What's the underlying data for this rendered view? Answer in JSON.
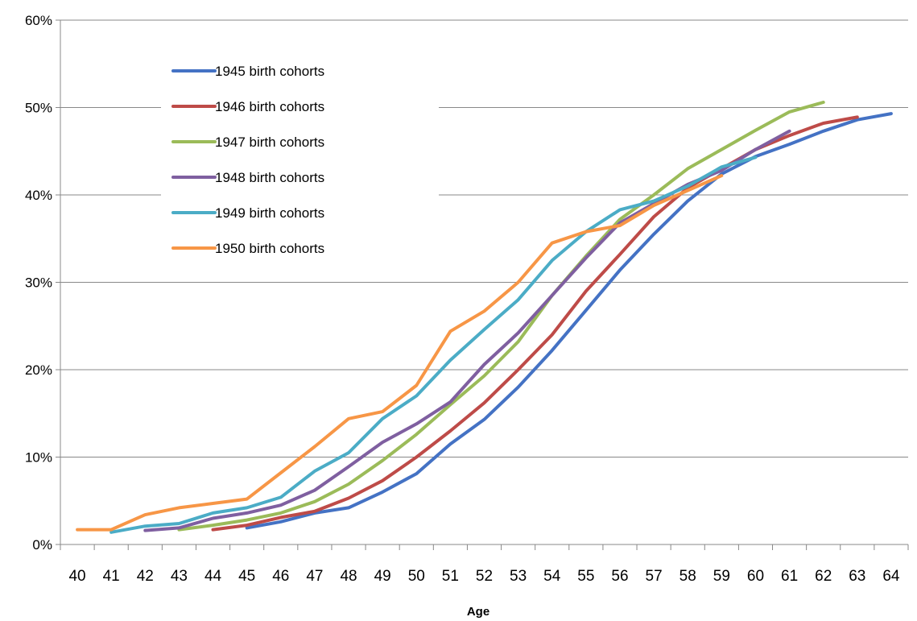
{
  "chart_data": {
    "type": "line",
    "title": "",
    "xlabel": "Age",
    "ylabel": "",
    "x": [
      40,
      41,
      42,
      43,
      44,
      45,
      46,
      47,
      48,
      49,
      50,
      51,
      52,
      53,
      54,
      55,
      56,
      57,
      58,
      59,
      60,
      61,
      62,
      63,
      64
    ],
    "xlim": [
      40,
      64
    ],
    "ylim": [
      0,
      0.6
    ],
    "yticks": [
      0,
      0.1,
      0.2,
      0.3,
      0.4,
      0.5,
      0.6
    ],
    "ytick_labels": [
      "0%",
      "10%",
      "20%",
      "30%",
      "40%",
      "50%",
      "60%"
    ],
    "grid": "horizontal",
    "legend_position": "upper-left inside plot",
    "series": [
      {
        "name": "1945 birth cohorts",
        "color": "#4472C4",
        "x": [
          45,
          46,
          47,
          48,
          49,
          50,
          51,
          52,
          53,
          54,
          55,
          56,
          57,
          58,
          59,
          60,
          61,
          62,
          63,
          64
        ],
        "values": [
          0.019,
          0.026,
          0.036,
          0.042,
          0.06,
          0.081,
          0.115,
          0.143,
          0.18,
          0.222,
          0.268,
          0.314,
          0.355,
          0.393,
          0.424,
          0.444,
          0.458,
          0.473,
          0.486,
          0.493
        ]
      },
      {
        "name": "1946 birth cohorts",
        "color": "#BE4B48",
        "x": [
          44,
          45,
          46,
          47,
          48,
          49,
          50,
          51,
          52,
          53,
          54,
          55,
          56,
          57,
          58,
          59,
          60,
          61,
          62,
          63
        ],
        "values": [
          0.017,
          0.022,
          0.031,
          0.038,
          0.053,
          0.073,
          0.1,
          0.13,
          0.162,
          0.2,
          0.24,
          0.29,
          0.332,
          0.375,
          0.408,
          0.43,
          0.452,
          0.468,
          0.482,
          0.489
        ]
      },
      {
        "name": "1947 birth cohorts",
        "color": "#9BBB59",
        "x": [
          43,
          44,
          45,
          46,
          47,
          48,
          49,
          50,
          51,
          52,
          53,
          54,
          55,
          56,
          57,
          58,
          59,
          60,
          61,
          62
        ],
        "values": [
          0.017,
          0.022,
          0.028,
          0.036,
          0.049,
          0.069,
          0.096,
          0.126,
          0.16,
          0.193,
          0.232,
          0.285,
          0.33,
          0.372,
          0.4,
          0.43,
          0.452,
          0.474,
          0.495,
          0.506
        ]
      },
      {
        "name": "1948 birth cohorts",
        "color": "#7F5FA0",
        "x": [
          42,
          43,
          44,
          45,
          46,
          47,
          48,
          49,
          50,
          51,
          52,
          53,
          54,
          55,
          56,
          57,
          58,
          59,
          60,
          61
        ],
        "values": [
          0.016,
          0.019,
          0.03,
          0.036,
          0.045,
          0.062,
          0.089,
          0.117,
          0.138,
          0.163,
          0.206,
          0.242,
          0.285,
          0.328,
          0.368,
          0.39,
          0.412,
          0.428,
          0.452,
          0.473
        ]
      },
      {
        "name": "1949 birth cohorts",
        "color": "#4BACC6",
        "x": [
          41,
          42,
          43,
          44,
          45,
          46,
          47,
          48,
          49,
          50,
          51,
          52,
          53,
          54,
          55,
          56,
          57,
          58,
          59,
          60
        ],
        "values": [
          0.014,
          0.021,
          0.024,
          0.036,
          0.042,
          0.054,
          0.084,
          0.105,
          0.144,
          0.17,
          0.211,
          0.246,
          0.28,
          0.325,
          0.358,
          0.383,
          0.393,
          0.41,
          0.432,
          0.443
        ]
      },
      {
        "name": "1950 birth cohorts",
        "color": "#F79646",
        "x": [
          40,
          41,
          42,
          43,
          44,
          45,
          46,
          47,
          48,
          49,
          50,
          51,
          52,
          53,
          54,
          55,
          56,
          57,
          58,
          59
        ],
        "values": [
          0.017,
          0.017,
          0.034,
          0.042,
          0.047,
          0.052,
          0.082,
          0.112,
          0.144,
          0.152,
          0.182,
          0.244,
          0.267,
          0.3,
          0.345,
          0.358,
          0.365,
          0.388,
          0.405,
          0.422
        ]
      }
    ]
  }
}
